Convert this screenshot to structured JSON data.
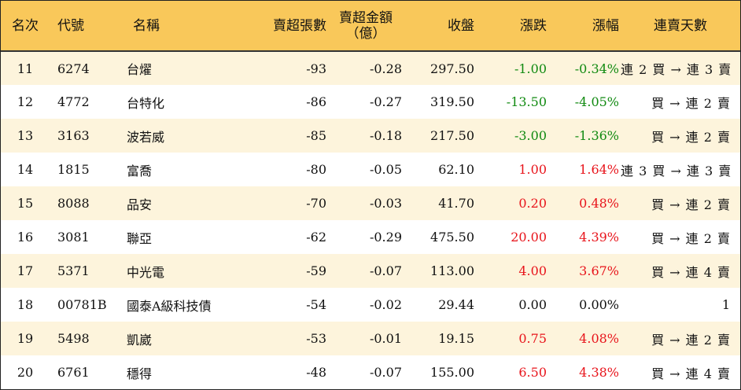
{
  "headers": {
    "rank": "名次",
    "code": "代號",
    "name": "名稱",
    "net_lots": "賣超張數",
    "net_amount_line1": "賣超金額",
    "net_amount_line2": "（億）",
    "close": "收盤",
    "change": "漲跌",
    "change_pct": "漲幅",
    "streak": "連賣天數"
  },
  "colors": {
    "header_bg": "#f9c85a",
    "alt_row_bg": "#fdf4dc",
    "up": "#e8141b",
    "down": "#118a11"
  },
  "rows": [
    {
      "rank": "11",
      "code": "6274",
      "name": "台燿",
      "net_lots": "-93",
      "net_amount": "-0.28",
      "close": "297.50",
      "change": "-1.00",
      "change_pct": "-0.34%",
      "direction": "down",
      "streak": "連 2 買 → 連 3 賣"
    },
    {
      "rank": "12",
      "code": "4772",
      "name": "台特化",
      "net_lots": "-86",
      "net_amount": "-0.27",
      "close": "319.50",
      "change": "-13.50",
      "change_pct": "-4.05%",
      "direction": "down",
      "streak": "買 → 連 2 賣"
    },
    {
      "rank": "13",
      "code": "3163",
      "name": "波若威",
      "net_lots": "-85",
      "net_amount": "-0.18",
      "close": "217.50",
      "change": "-3.00",
      "change_pct": "-1.36%",
      "direction": "down",
      "streak": "買 → 連 2 賣"
    },
    {
      "rank": "14",
      "code": "1815",
      "name": "富喬",
      "net_lots": "-80",
      "net_amount": "-0.05",
      "close": "62.10",
      "change": "1.00",
      "change_pct": "1.64%",
      "direction": "up",
      "streak": "連 3 買 → 連 3 賣"
    },
    {
      "rank": "15",
      "code": "8088",
      "name": "品安",
      "net_lots": "-70",
      "net_amount": "-0.03",
      "close": "41.70",
      "change": "0.20",
      "change_pct": "0.48%",
      "direction": "up",
      "streak": "買 → 連 2 賣"
    },
    {
      "rank": "16",
      "code": "3081",
      "name": "聯亞",
      "net_lots": "-62",
      "net_amount": "-0.29",
      "close": "475.50",
      "change": "20.00",
      "change_pct": "4.39%",
      "direction": "up",
      "streak": "買 → 連 2 賣"
    },
    {
      "rank": "17",
      "code": "5371",
      "name": "中光電",
      "net_lots": "-59",
      "net_amount": "-0.07",
      "close": "113.00",
      "change": "4.00",
      "change_pct": "3.67%",
      "direction": "up",
      "streak": "買 → 連 4 賣"
    },
    {
      "rank": "18",
      "code": "00781B",
      "name": "國泰A級科技債",
      "net_lots": "-54",
      "net_amount": "-0.02",
      "close": "29.44",
      "change": "0.00",
      "change_pct": "0.00%",
      "direction": "flat",
      "streak": "1"
    },
    {
      "rank": "19",
      "code": "5498",
      "name": "凱崴",
      "net_lots": "-53",
      "net_amount": "-0.01",
      "close": "19.15",
      "change": "0.75",
      "change_pct": "4.08%",
      "direction": "up",
      "streak": "買 → 連 2 賣"
    },
    {
      "rank": "20",
      "code": "6761",
      "name": "穩得",
      "net_lots": "-48",
      "net_amount": "-0.07",
      "close": "155.00",
      "change": "6.50",
      "change_pct": "4.38%",
      "direction": "up",
      "streak": "買 → 連 4 賣"
    }
  ]
}
